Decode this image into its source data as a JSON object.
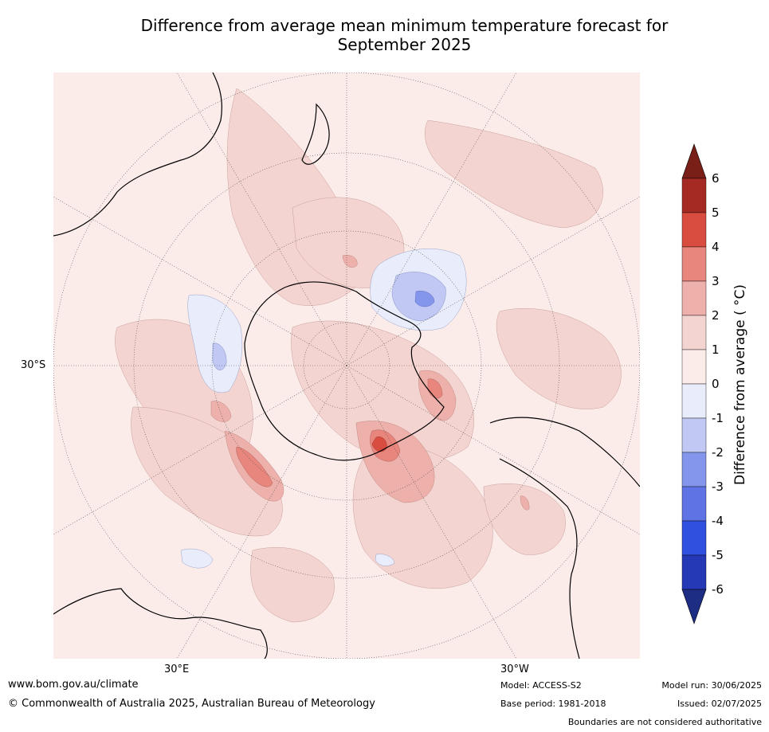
{
  "title": "Difference from average mean minimum temperature forecast for\nSeptember 2025",
  "map": {
    "projection": "south polar stereographic",
    "lat_label": "30°S",
    "lon_labels": [
      "30°E",
      "30°W"
    ],
    "graticule_parallels": [
      "60°S",
      "30°S",
      "0°"
    ],
    "graticule_meridians_deg": [
      0,
      30,
      60,
      90,
      120,
      150,
      180,
      210,
      240,
      270,
      300,
      330
    ],
    "anomaly_features": [
      {
        "region": "Southern Indian Ocean south-west of Australia",
        "range": "3 to 4"
      },
      {
        "region": "South Atlantic near Weddell Sea",
        "range": "3 to 5"
      },
      {
        "region": "South Atlantic off Argentina",
        "range": "2 to 3"
      },
      {
        "region": "Southern Pacific near Ross Sea / New Zealand",
        "range": "-3 to -2"
      },
      {
        "region": "Southern Ocean south of Australia",
        "range": "-1 to 0"
      }
    ],
    "colors": {
      "ocean_default": "#fbecea",
      "coast": "#000000",
      "graticule": "#555555"
    }
  },
  "colorbar": {
    "label": "Difference from average ( °C)",
    "ticks": [
      "6",
      "5",
      "4",
      "3",
      "2",
      "1",
      "0",
      "-1",
      "-2",
      "-3",
      "-4",
      "-5",
      "-6"
    ],
    "levels": [
      {
        "range": "6 to 5",
        "color": "#a52a24"
      },
      {
        "range": "5 to 4",
        "color": "#d94d40"
      },
      {
        "range": "4 to 3",
        "color": "#e8857d"
      },
      {
        "range": "3 to 2",
        "color": "#eeb0aa"
      },
      {
        "range": "2 to 1",
        "color": "#f4d4d0"
      },
      {
        "range": "1 to 0",
        "color": "#fbecea"
      },
      {
        "range": "0 to -1",
        "color": "#e8ecfb"
      },
      {
        "range": "-1 to -2",
        "color": "#c0c8f3"
      },
      {
        "range": "-2 to -3",
        "color": "#8496ec"
      },
      {
        "range": "-3 to -4",
        "color": "#5f73e5"
      },
      {
        "range": "-4 to -5",
        "color": "#3050e0"
      },
      {
        "range": "-5 to -6",
        "color": "#2538b5"
      }
    ],
    "extend_colors": {
      "high": "#7a1e18",
      "low": "#1e2d84"
    }
  },
  "footer": {
    "url": "www.bom.gov.au/climate",
    "copyright": "© Commonwealth of Australia 2025, Australian Bureau of Meteorology",
    "model": "Model: ACCESS-S2",
    "base_period": "Base period: 1981-2018",
    "model_run": "Model run: 30/06/2025",
    "issued": "Issued: 02/07/2025",
    "disclaimer": "Boundaries are not considered authoritative"
  }
}
